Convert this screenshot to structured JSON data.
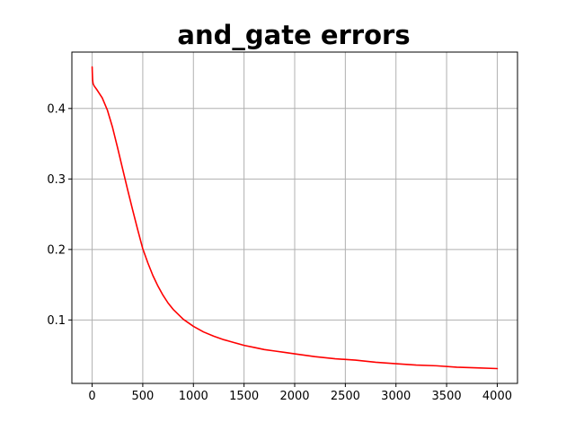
{
  "chart_data": {
    "type": "line",
    "title": "and_gate errors",
    "xlabel": "",
    "ylabel": "",
    "xlim": [
      -200,
      4200
    ],
    "ylim": [
      0.01,
      0.48
    ],
    "x_ticks": [
      0,
      500,
      1000,
      1500,
      2000,
      2500,
      3000,
      3500,
      4000
    ],
    "y_ticks": [
      0.1,
      0.2,
      0.3,
      0.4
    ],
    "x_tick_labels": [
      "0",
      "500",
      "1000",
      "1500",
      "2000",
      "2500",
      "3000",
      "3500",
      "4000"
    ],
    "y_tick_labels": [
      "0.1",
      "0.2",
      "0.3",
      "0.4"
    ],
    "grid": true,
    "legend": "none",
    "series": [
      {
        "color": "#ff0000",
        "x": [
          0,
          2,
          5,
          10,
          20,
          50,
          100,
          150,
          200,
          250,
          300,
          350,
          400,
          450,
          500,
          550,
          600,
          650,
          700,
          750,
          800,
          900,
          1000,
          1100,
          1200,
          1300,
          1400,
          1500,
          1600,
          1700,
          1800,
          1900,
          2000,
          2200,
          2400,
          2600,
          2800,
          3000,
          3200,
          3400,
          3600,
          3800,
          4000
        ],
        "y": [
          0.459,
          0.45,
          0.44,
          0.435,
          0.432,
          0.426,
          0.415,
          0.398,
          0.374,
          0.345,
          0.315,
          0.285,
          0.256,
          0.228,
          0.201,
          0.181,
          0.163,
          0.148,
          0.135,
          0.124,
          0.115,
          0.101,
          0.091,
          0.083,
          0.077,
          0.072,
          0.068,
          0.064,
          0.061,
          0.058,
          0.056,
          0.054,
          0.052,
          0.048,
          0.045,
          0.043,
          0.04,
          0.038,
          0.036,
          0.035,
          0.033,
          0.032,
          0.031
        ]
      }
    ]
  },
  "style": {
    "line_color": "#ff0000",
    "grid_color": "#b0b0b0",
    "axis_color": "#000000"
  }
}
